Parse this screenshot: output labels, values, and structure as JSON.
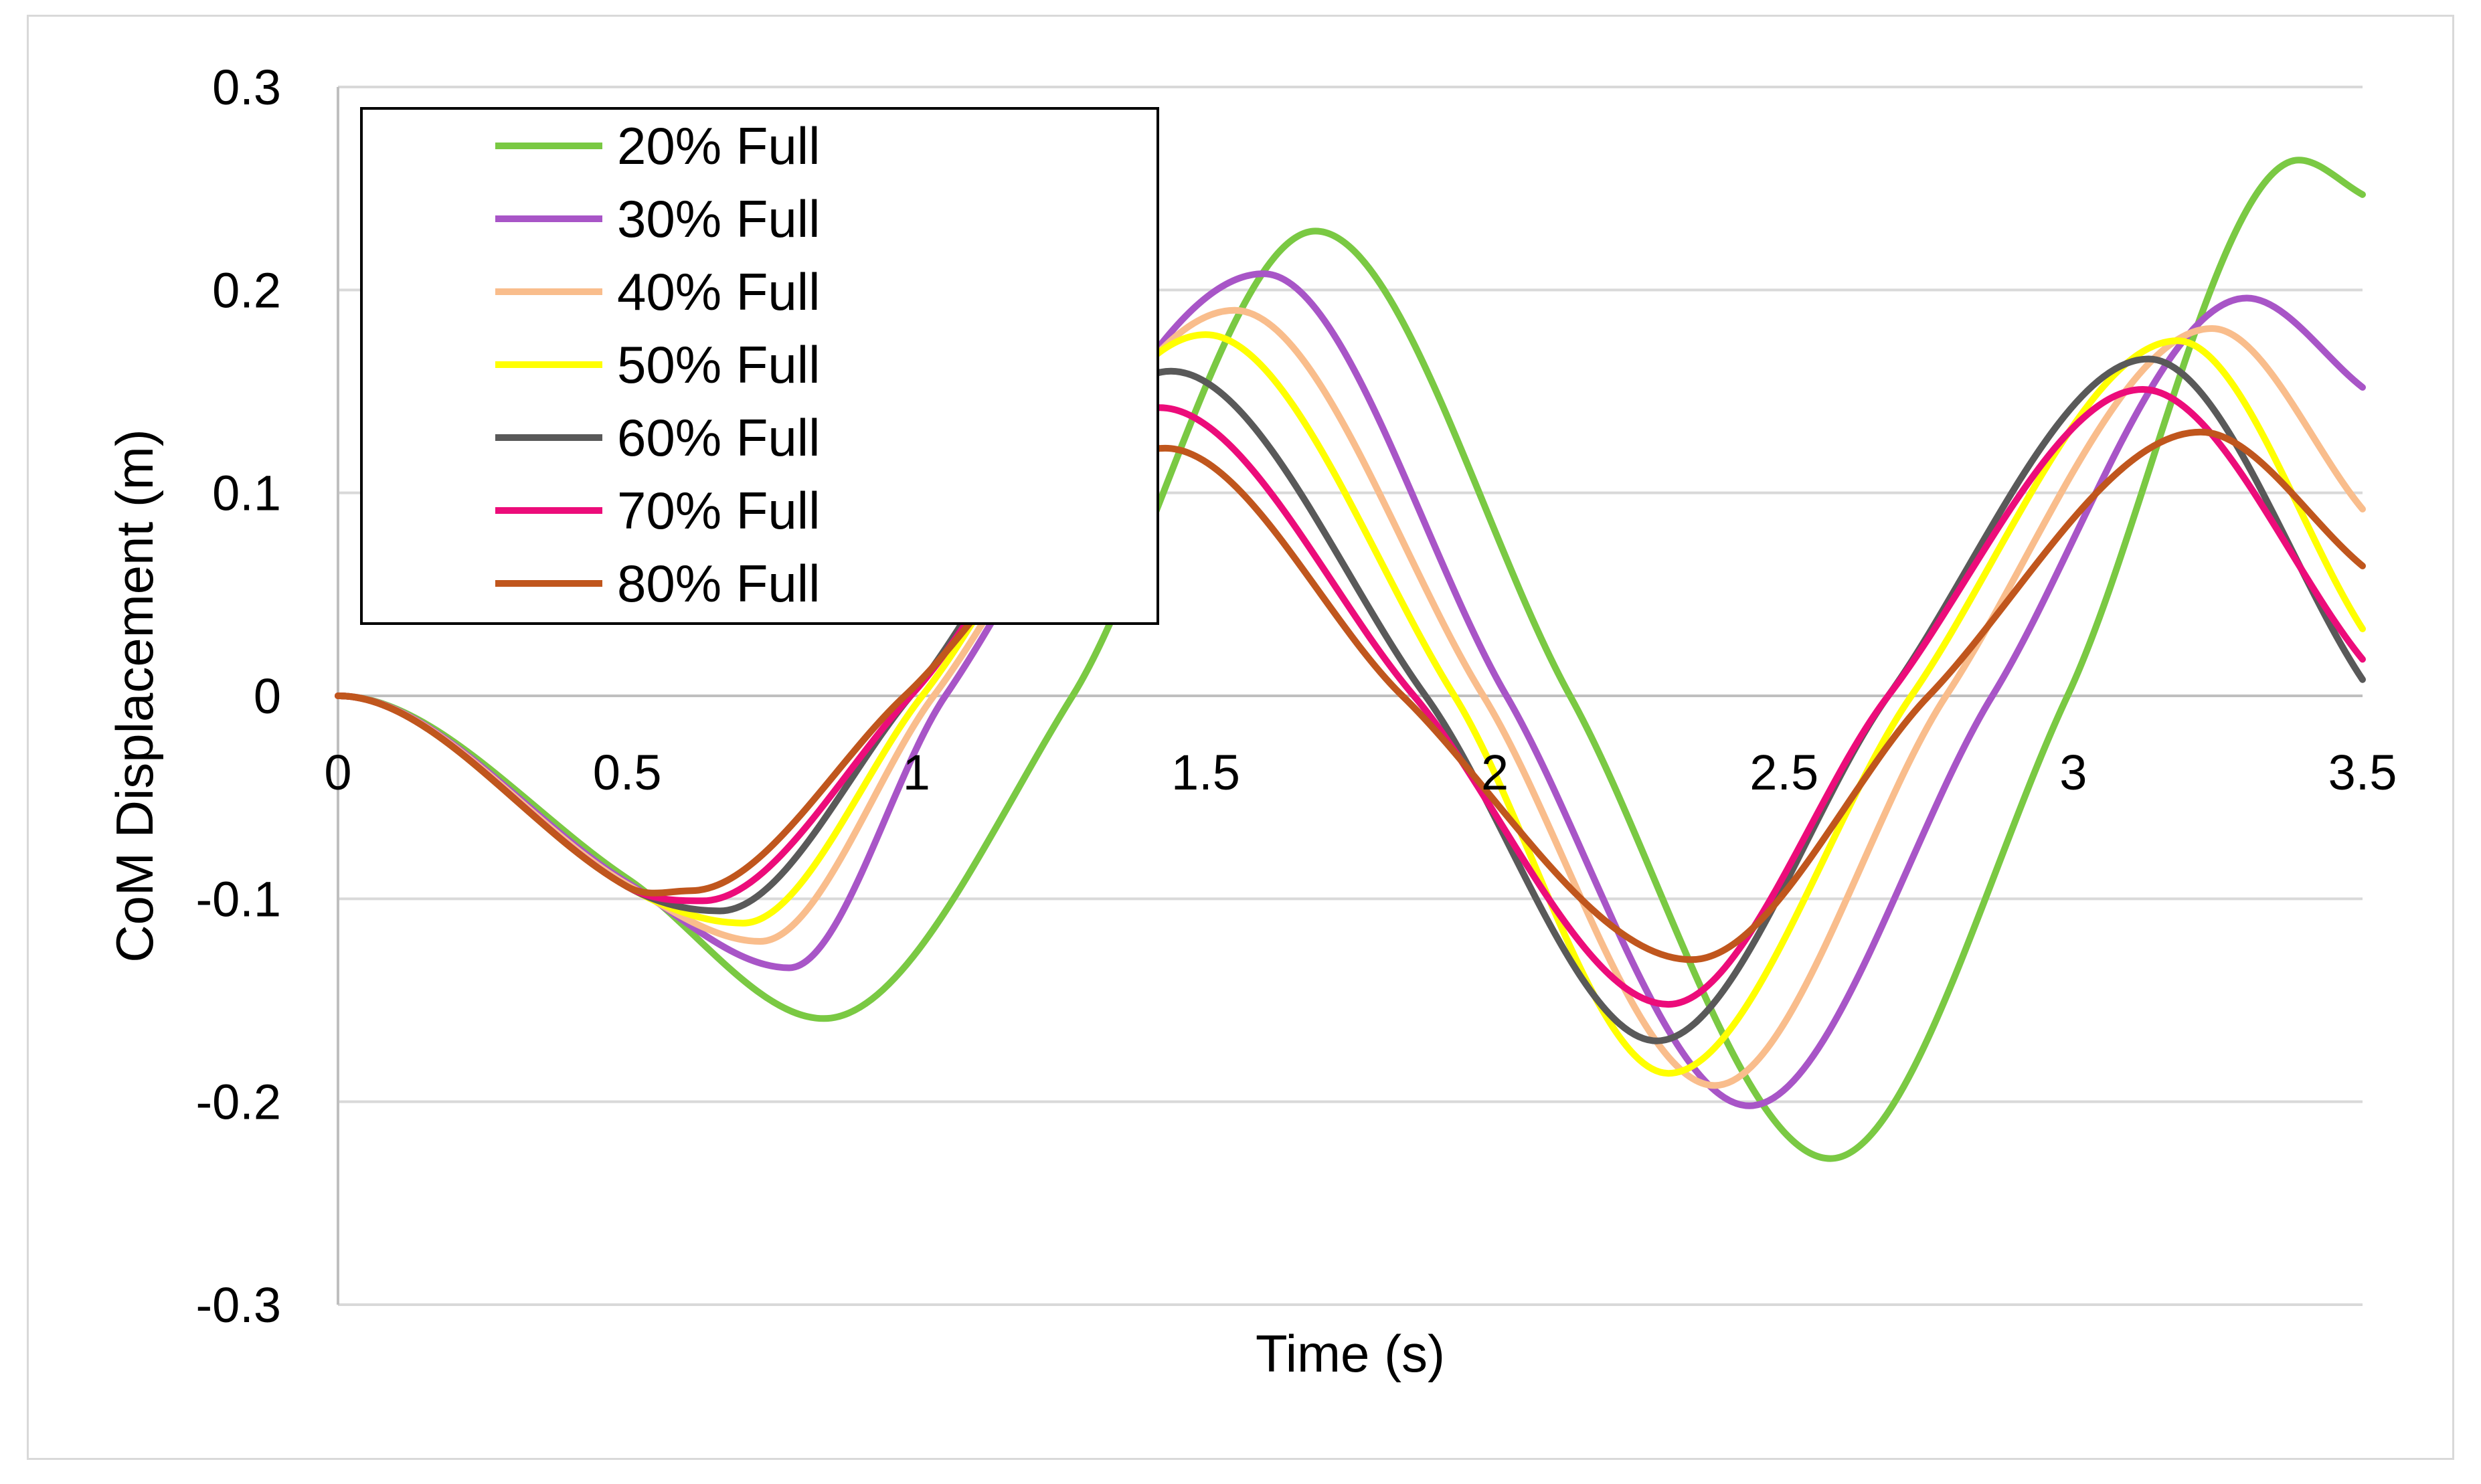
{
  "chart_data": {
    "type": "line",
    "title": "",
    "xlabel": "Time (s)",
    "ylabel": "CoM Displacement (m)",
    "xlim": [
      0,
      3.5
    ],
    "ylim": [
      -0.3,
      0.3
    ],
    "x_ticks": [
      0,
      0.5,
      1,
      1.5,
      2,
      2.5,
      3,
      3.5
    ],
    "x_tick_labels": [
      "0",
      "0.5",
      "1",
      "1.5",
      "2",
      "2.5",
      "3",
      "3.5"
    ],
    "y_ticks": [
      0.3,
      0.2,
      0.1,
      0,
      -0.1,
      -0.2,
      -0.3
    ],
    "y_tick_labels": [
      "0.3",
      "0.2",
      "0.1",
      "0",
      "-0.1",
      "-0.2",
      "-0.3"
    ],
    "grid": "horizontal",
    "legend_position": "top-left",
    "x": [
      0,
      0.5,
      0.85,
      1.7,
      2.6,
      3.4,
      3.5
    ],
    "series": [
      {
        "name": "20% Full",
        "color": "#7ac943",
        "points": [
          [
            0,
            0
          ],
          [
            0.5,
            -0.09
          ],
          [
            0.84,
            -0.159
          ],
          [
            1.27,
            0
          ],
          [
            1.69,
            0.229
          ],
          [
            2.13,
            0
          ],
          [
            2.58,
            -0.228
          ],
          [
            2.99,
            0
          ],
          [
            3.39,
            0.264
          ],
          [
            3.5,
            0.247
          ]
        ]
      },
      {
        "name": "30% Full",
        "color": "#a855c7",
        "points": [
          [
            0,
            0
          ],
          [
            0.5,
            -0.092
          ],
          [
            0.78,
            -0.134
          ],
          [
            1.05,
            0
          ],
          [
            1.6,
            0.208
          ],
          [
            2.02,
            0
          ],
          [
            2.44,
            -0.202
          ],
          [
            2.86,
            0
          ],
          [
            3.3,
            0.196
          ],
          [
            3.5,
            0.152
          ]
        ]
      },
      {
        "name": "40% Full",
        "color": "#f9bd8c",
        "points": [
          [
            0,
            0
          ],
          [
            0.5,
            -0.093
          ],
          [
            0.73,
            -0.121
          ],
          [
            1.03,
            0
          ],
          [
            1.55,
            0.19
          ],
          [
            1.98,
            0
          ],
          [
            2.38,
            -0.192
          ],
          [
            2.78,
            0
          ],
          [
            3.24,
            0.181
          ],
          [
            3.5,
            0.092
          ]
        ]
      },
      {
        "name": "50% Full",
        "color": "#ffff00",
        "points": [
          [
            0,
            0
          ],
          [
            0.5,
            -0.094
          ],
          [
            0.7,
            -0.112
          ],
          [
            1.01,
            0
          ],
          [
            1.5,
            0.178
          ],
          [
            1.93,
            0
          ],
          [
            2.3,
            -0.186
          ],
          [
            2.72,
            0
          ],
          [
            3.18,
            0.175
          ],
          [
            3.5,
            0.033
          ]
        ]
      },
      {
        "name": "60% Full",
        "color": "#595959",
        "points": [
          [
            0,
            0
          ],
          [
            0.5,
            -0.094
          ],
          [
            0.66,
            -0.106
          ],
          [
            0.99,
            0
          ],
          [
            1.44,
            0.16
          ],
          [
            1.88,
            0
          ],
          [
            2.28,
            -0.17
          ],
          [
            2.68,
            0
          ],
          [
            3.13,
            0.166
          ],
          [
            3.5,
            0.008
          ]
        ]
      },
      {
        "name": "70% Full",
        "color": "#ec0c7a",
        "points": [
          [
            0,
            0
          ],
          [
            0.5,
            -0.094
          ],
          [
            0.63,
            -0.101
          ],
          [
            0.99,
            0
          ],
          [
            1.42,
            0.142
          ],
          [
            1.86,
            0
          ],
          [
            2.3,
            -0.152
          ],
          [
            2.68,
            0
          ],
          [
            3.12,
            0.151
          ],
          [
            3.5,
            0.018
          ]
        ]
      },
      {
        "name": "80% Full",
        "color": "#c0561d",
        "points": [
          [
            0,
            0
          ],
          [
            0.5,
            -0.094
          ],
          [
            0.61,
            -0.096
          ],
          [
            0.98,
            0
          ],
          [
            1.43,
            0.122
          ],
          [
            1.84,
            0
          ],
          [
            2.34,
            -0.13
          ],
          [
            2.75,
            0
          ],
          [
            3.22,
            0.13
          ],
          [
            3.5,
            0.064
          ]
        ]
      }
    ]
  }
}
